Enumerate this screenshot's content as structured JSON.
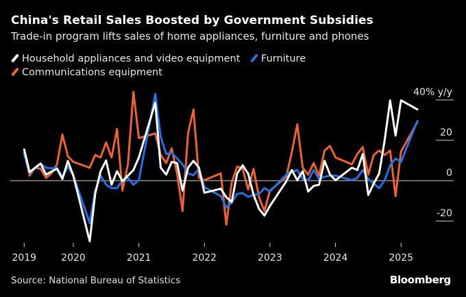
{
  "title": "China's Retail Sales Boosted by Government Subsidies",
  "subtitle": "Trade-in program lifts sales of home appliances, furniture and phones",
  "source": "Source: National Bureau of Statistics",
  "brand": "Bloomberg",
  "chart_data": {
    "type": "line",
    "ylabel_unit": "% y/y",
    "ylim": [
      -32,
      45
    ],
    "yticks": [
      {
        "value": 40,
        "label": "40% y/y"
      },
      {
        "value": 20,
        "label": "20"
      },
      {
        "value": 0,
        "label": "0"
      },
      {
        "value": -20,
        "label": "-20"
      }
    ],
    "xticks": [
      "2019",
      "2020",
      "2021",
      "2022",
      "2023",
      "2024",
      "2025"
    ],
    "zero_line": true,
    "grid": false,
    "legend_placement": "top-left",
    "dates": [
      "2019-03",
      "2019-04",
      "2019-05",
      "2019-06",
      "2019-07",
      "2019-08",
      "2019-09",
      "2019-10",
      "2019-11",
      "2019-12",
      "2020-03",
      "2020-04",
      "2020-05",
      "2020-06",
      "2020-07",
      "2020-08",
      "2020-09",
      "2020-10",
      "2020-11",
      "2020-12",
      "2021-03",
      "2021-04",
      "2021-05",
      "2021-06",
      "2021-07",
      "2021-08",
      "2021-09",
      "2021-10",
      "2021-11",
      "2021-12",
      "2022-03",
      "2022-04",
      "2022-05",
      "2022-06",
      "2022-07",
      "2022-08",
      "2022-09",
      "2022-10",
      "2022-11",
      "2022-12",
      "2023-03",
      "2023-04",
      "2023-05",
      "2023-06",
      "2023-07",
      "2023-08",
      "2023-09",
      "2023-10",
      "2023-11",
      "2023-12",
      "2024-03",
      "2024-04",
      "2024-05",
      "2024-06",
      "2024-07",
      "2024-08",
      "2024-09",
      "2024-10",
      "2024-11",
      "2024-12",
      "2025-03"
    ],
    "series": [
      {
        "name": "Communications equipment",
        "color": "#f0622d",
        "values": [
          13.8,
          2.5,
          6.4,
          5.9,
          1.4,
          3.6,
          8.1,
          22.8,
          12.1,
          9.3,
          6.4,
          12.7,
          11.5,
          18.9,
          11.5,
          25.6,
          -4.9,
          8.1,
          44,
          21.1,
          23.4,
          12.7,
          8.7,
          16,
          3.6,
          -15,
          23.4,
          35.3,
          1.4,
          0.2,
          3.6,
          -21.8,
          -1,
          7,
          5.9,
          -4.3,
          5.9,
          -8.2,
          -15,
          -4.9,
          1.9,
          14,
          27.9,
          6.4,
          3,
          8.7,
          2.5,
          14.9,
          17.2,
          11.5,
          8.1,
          13.2,
          16.6,
          3,
          12.7,
          14.9,
          12.7,
          14.9,
          -7.7,
          14.4,
          29
        ]
      },
      {
        "name": "Furniture",
        "color": "#1f72ea",
        "values": [
          13.2,
          3.6,
          6,
          8.4,
          6.4,
          6.1,
          6.4,
          1.9,
          7,
          2.5,
          -21,
          -4.9,
          2.5,
          -2,
          -3.7,
          -3.7,
          0.2,
          1.4,
          -2,
          0.2,
          43,
          21.7,
          13.2,
          13.8,
          11,
          8.1,
          3.6,
          2.7,
          5.9,
          -3.2,
          -7.7,
          -13.3,
          -11,
          -6.5,
          -6.2,
          -8,
          -7.1,
          -6.5,
          -3.7,
          -5.4,
          3,
          4.5,
          5.3,
          0.8,
          0.2,
          5.3,
          0.8,
          1.9,
          2.5,
          2.5,
          0.2,
          1.4,
          5.3,
          0.8,
          -1.5,
          -3.7,
          0.2,
          7.6,
          11,
          9.3,
          29.6
        ]
      },
      {
        "name": "Household appliances and video equipment",
        "color": "#ffffff",
        "values": [
          15.5,
          4.2,
          6.4,
          8.5,
          3,
          4.5,
          5.9,
          0.8,
          9.8,
          2.5,
          -30,
          -6.5,
          4.7,
          10,
          -2,
          4.7,
          -0.3,
          2.5,
          5.3,
          11.5,
          38.6,
          6.4,
          3,
          9.3,
          8.7,
          -4.9,
          6.4,
          9.8,
          6.4,
          -6,
          -4,
          -8.2,
          -10.5,
          3.6,
          7.6,
          3.6,
          -7,
          -14,
          -17.3,
          -12.5,
          -0.3,
          5.3,
          0.2,
          4.7,
          -5.4,
          -2.6,
          -2,
          9.8,
          3,
          0.2,
          6.4,
          5.3,
          13.2,
          -7.1,
          -1.5,
          3.6,
          20,
          39.8,
          22.3,
          39.8,
          35.3
        ]
      }
    ],
    "legend": [
      {
        "label": "Household appliances and video equipment",
        "color": "#ffffff"
      },
      {
        "label": "Furniture",
        "color": "#1f72ea"
      },
      {
        "label": "Communications equipment",
        "color": "#f0622d"
      }
    ]
  }
}
